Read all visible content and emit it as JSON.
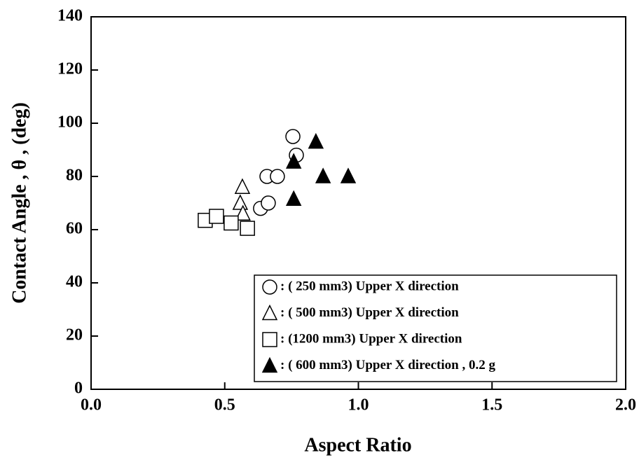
{
  "chart_data": {
    "type": "scatter",
    "xlabel": "Aspect  Ratio",
    "ylabel": "Contact Angle , θ , (deg)",
    "xlim": [
      0,
      2
    ],
    "ylim": [
      0,
      140
    ],
    "xticks": [
      {
        "value": 0,
        "label": "0.0"
      },
      0.5,
      {
        "value": 1,
        "label": "1.0"
      },
      1.5,
      {
        "value": 2,
        "label": "2.0"
      }
    ],
    "yticks": [
      0,
      20,
      40,
      60,
      80,
      100,
      120,
      140
    ],
    "legend": "lower right",
    "series": [
      {
        "name": ": (  250 mm3)  Upper  X  direction",
        "color": "#000000",
        "marker": "circle-open",
        "x": [
          0.755,
          0.768,
          0.658,
          0.697,
          0.634,
          0.663
        ],
        "y": [
          95,
          88,
          80,
          80,
          68,
          70
        ]
      },
      {
        "name": ": (  500 mm3)  Upper  X  direction",
        "color": "#000000",
        "marker": "triangle-open",
        "x": [
          0.566,
          0.558,
          0.568
        ],
        "y": [
          76,
          70,
          66
        ]
      },
      {
        "name": ": (1200 mm3)  Upper  X  direction",
        "color": "#000000",
        "marker": "square-open",
        "x": [
          0.427,
          0.469,
          0.524,
          0.585
        ],
        "y": [
          63.5,
          65,
          62.5,
          60.5
        ]
      },
      {
        "name": ": (  600 mm3)  Upper  X  direction , 0.2 g",
        "color": "#000000",
        "marker": "triangle-filled",
        "x": [
          0.841,
          0.758,
          0.868,
          0.962,
          0.758
        ],
        "y": [
          93,
          85.5,
          80,
          80,
          71.5
        ]
      }
    ]
  }
}
